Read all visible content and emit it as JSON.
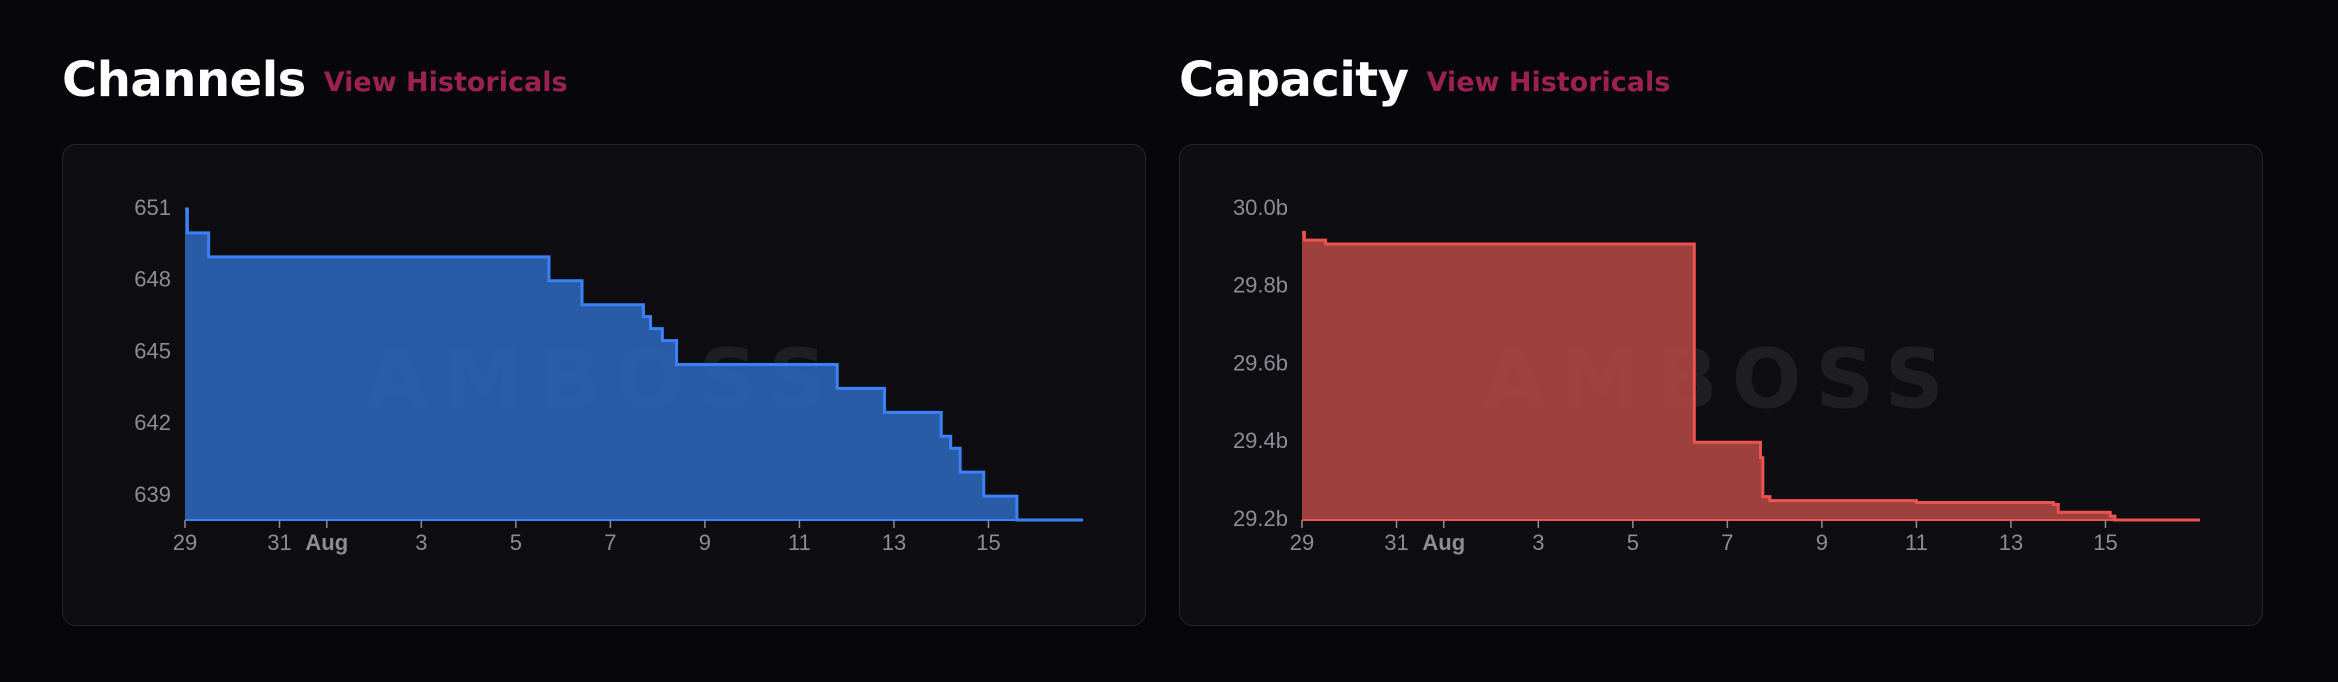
{
  "panels": [
    {
      "title": "Channels",
      "link_label": "View Historicals"
    },
    {
      "title": "Capacity",
      "link_label": "View Historicals"
    }
  ],
  "watermark": "AMBOSS",
  "chart_data": [
    {
      "type": "area",
      "title": "Channels",
      "step": true,
      "color": "#3b82f6",
      "fill_color": "#2b62b4",
      "x_ticks": [
        {
          "label": "29",
          "x": 0
        },
        {
          "label": "31",
          "x": 2
        },
        {
          "label": "Aug",
          "x": 3,
          "bold": true
        },
        {
          "label": "3",
          "x": 5
        },
        {
          "label": "5",
          "x": 7
        },
        {
          "label": "7",
          "x": 9
        },
        {
          "label": "9",
          "x": 11
        },
        {
          "label": "11",
          "x": 13
        },
        {
          "label": "13",
          "x": 15
        },
        {
          "label": "15",
          "x": 17
        }
      ],
      "xlim": [
        0,
        19
      ],
      "y_ticks": [
        {
          "label": "651",
          "y": 651
        },
        {
          "label": "648",
          "y": 648
        },
        {
          "label": "645",
          "y": 645
        },
        {
          "label": "642",
          "y": 642
        },
        {
          "label": "639",
          "y": 639
        }
      ],
      "ylim": [
        638,
        651
      ],
      "points": [
        {
          "x": 0,
          "y": 651
        },
        {
          "x": 0.05,
          "y": 650
        },
        {
          "x": 0.5,
          "y": 649
        },
        {
          "x": 7.7,
          "y": 648
        },
        {
          "x": 8.4,
          "y": 647
        },
        {
          "x": 9.7,
          "y": 646.5
        },
        {
          "x": 9.85,
          "y": 646
        },
        {
          "x": 10.1,
          "y": 645.5
        },
        {
          "x": 10.4,
          "y": 644.5
        },
        {
          "x": 13.8,
          "y": 643.5
        },
        {
          "x": 14.8,
          "y": 642.5
        },
        {
          "x": 16.0,
          "y": 641.5
        },
        {
          "x": 16.2,
          "y": 641
        },
        {
          "x": 16.4,
          "y": 640
        },
        {
          "x": 16.9,
          "y": 639
        },
        {
          "x": 17.6,
          "y": 638
        },
        {
          "x": 19.0,
          "y": 638
        }
      ]
    },
    {
      "type": "area",
      "title": "Capacity",
      "step": true,
      "color": "#ef5350",
      "fill_color": "#a94442",
      "x_ticks": [
        {
          "label": "29",
          "x": 0
        },
        {
          "label": "31",
          "x": 2
        },
        {
          "label": "Aug",
          "x": 3,
          "bold": true
        },
        {
          "label": "3",
          "x": 5
        },
        {
          "label": "5",
          "x": 7
        },
        {
          "label": "7",
          "x": 9
        },
        {
          "label": "9",
          "x": 11
        },
        {
          "label": "11",
          "x": 13
        },
        {
          "label": "13",
          "x": 15
        },
        {
          "label": "15",
          "x": 17
        }
      ],
      "xlim": [
        0,
        19
      ],
      "y_ticks": [
        {
          "label": "30.0b",
          "y": 30.0
        },
        {
          "label": "29.8b",
          "y": 29.8
        },
        {
          "label": "29.6b",
          "y": 29.6
        },
        {
          "label": "29.4b",
          "y": 29.4
        },
        {
          "label": "29.2b",
          "y": 29.2
        }
      ],
      "ylim": [
        29.2,
        30.0
      ],
      "points": [
        {
          "x": 0,
          "y": 29.94
        },
        {
          "x": 0.05,
          "y": 29.92
        },
        {
          "x": 0.5,
          "y": 29.91
        },
        {
          "x": 8.3,
          "y": 29.9
        },
        {
          "x": 8.3,
          "y": 29.4
        },
        {
          "x": 9.6,
          "y": 29.4
        },
        {
          "x": 9.7,
          "y": 29.36
        },
        {
          "x": 9.75,
          "y": 29.26
        },
        {
          "x": 9.9,
          "y": 29.25
        },
        {
          "x": 13.0,
          "y": 29.245
        },
        {
          "x": 15.9,
          "y": 29.24
        },
        {
          "x": 16.0,
          "y": 29.22
        },
        {
          "x": 17.1,
          "y": 29.21
        },
        {
          "x": 17.2,
          "y": 29.2
        },
        {
          "x": 19.0,
          "y": 29.2
        }
      ]
    }
  ]
}
